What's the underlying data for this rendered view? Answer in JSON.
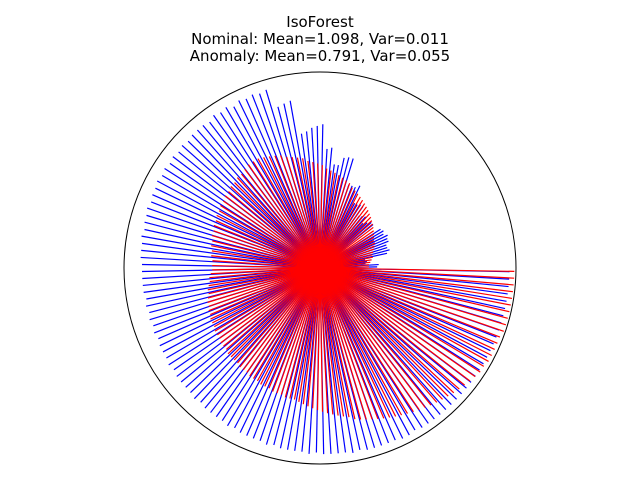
{
  "chart_data": {
    "type": "radial-bar",
    "title_lines": [
      "IsoForest",
      "Nominal: Mean=1.098, Var=0.011",
      "Anomaly: Mean=0.791, Var=0.055"
    ],
    "grid": false,
    "legend": "none",
    "r_max": 1.2,
    "circle_radius": 1.2,
    "start_angle_deg": 0,
    "direction": "counterclockwise",
    "sectors": [
      {
        "name": "Nominal",
        "color": "#0000ff",
        "angle_start_deg": 0,
        "angle_end_deg": 180,
        "count": 80,
        "values": [
          0.35,
          0.36,
          0.28,
          0.29,
          0.28,
          0.42,
          0.44,
          0.43,
          0.43,
          0.45,
          0.45,
          0.46,
          0.44,
          0.45,
          0.44,
          0.2,
          0.14,
          0.42,
          0.42,
          0.4,
          0.38,
          0.42,
          0.41,
          0.4,
          0.46,
          0.46,
          0.45,
          0.45,
          0.56,
          0.54,
          0.54,
          0.54,
          0.7,
          0.7,
          0.69,
          0.64,
          0.64,
          0.74,
          0.73,
          0.88,
          0.87,
          0.86,
          0.84,
          0.83,
          1.04,
          1.03,
          1.02,
          1.14,
          1.13,
          1.14,
          1.13,
          1.14,
          1.12,
          1.14,
          1.13,
          1.14,
          1.12,
          1.13,
          1.13,
          1.13,
          1.12,
          1.13,
          1.12,
          1.13,
          1.12,
          1.13,
          1.12,
          1.13,
          1.12,
          1.12,
          1.11,
          1.12,
          1.11,
          1.11,
          1.1,
          1.11,
          1.1,
          1.1,
          1.1,
          1.09
        ]
      },
      {
        "name": "Nominal",
        "color": "#0000ff",
        "angle_start_deg": 180,
        "angle_end_deg": 360,
        "count": 80,
        "values": [
          1.09,
          1.09,
          1.09,
          1.09,
          1.08,
          1.09,
          1.08,
          1.09,
          1.08,
          1.09,
          1.08,
          1.09,
          1.09,
          1.09,
          1.1,
          1.09,
          1.1,
          1.1,
          1.1,
          1.1,
          1.11,
          1.1,
          1.11,
          1.11,
          1.11,
          1.11,
          1.12,
          1.11,
          1.12,
          1.12,
          1.12,
          1.12,
          1.13,
          1.12,
          1.13,
          1.13,
          1.13,
          1.13,
          1.14,
          1.13,
          1.14,
          1.14,
          1.14,
          1.14,
          1.15,
          1.14,
          1.15,
          1.15,
          1.15,
          1.15,
          1.15,
          1.16,
          1.16,
          1.15,
          1.16,
          1.16,
          1.16,
          1.16,
          1.16,
          1.16,
          1.16,
          1.16,
          1.16,
          1.16,
          1.16,
          1.16,
          1.16,
          1.16,
          1.16,
          1.16,
          1.16,
          1.16,
          1.16,
          1.16,
          1.16,
          1.16,
          1.16,
          1.16,
          1.16,
          1.16
        ]
      },
      {
        "name": "Anomaly",
        "color": "#ff0000",
        "angle_start_deg": 0,
        "angle_end_deg": 180,
        "count": 70,
        "values": [
          0.3,
          0.3,
          0.31,
          0.32,
          0.33,
          0.33,
          0.34,
          0.35,
          0.36,
          0.37,
          0.37,
          0.38,
          0.39,
          0.4,
          0.41,
          0.42,
          0.43,
          0.44,
          0.45,
          0.46,
          0.47,
          0.48,
          0.49,
          0.5,
          0.51,
          0.52,
          0.53,
          0.55,
          0.56,
          0.57,
          0.58,
          0.59,
          0.6,
          0.61,
          0.63,
          0.64,
          0.65,
          0.66,
          0.68,
          0.69,
          0.7,
          0.71,
          0.73,
          0.74,
          0.75,
          0.76,
          0.77,
          0.77,
          0.77,
          0.76,
          0.75,
          0.75,
          0.74,
          0.74,
          0.73,
          0.73,
          0.72,
          0.72,
          0.71,
          0.71,
          0.7,
          0.7,
          0.69,
          0.69,
          0.68,
          0.68,
          0.67,
          0.67,
          0.66,
          0.66
        ]
      },
      {
        "name": "Anomaly",
        "color": "#ff0000",
        "angle_start_deg": 180,
        "angle_end_deg": 360,
        "count": 90,
        "values": [
          0.66,
          0.67,
          0.68,
          0.68,
          0.69,
          0.7,
          0.7,
          0.71,
          0.72,
          0.72,
          0.73,
          0.73,
          0.74,
          0.74,
          0.74,
          0.75,
          0.75,
          0.75,
          0.76,
          0.76,
          0.76,
          0.77,
          0.77,
          0.77,
          0.77,
          0.78,
          0.78,
          0.78,
          0.79,
          0.79,
          0.79,
          0.8,
          0.8,
          0.8,
          0.81,
          0.81,
          0.81,
          0.82,
          0.82,
          0.82,
          0.83,
          0.84,
          0.85,
          0.86,
          0.87,
          0.88,
          0.89,
          0.9,
          0.91,
          0.92,
          0.93,
          0.95,
          0.96,
          0.97,
          0.98,
          0.99,
          1.0,
          1.01,
          1.02,
          1.03,
          1.04,
          1.05,
          1.06,
          1.07,
          1.08,
          1.09,
          1.1,
          1.11,
          1.12,
          1.13,
          1.14,
          1.15,
          1.16,
          1.17,
          1.17,
          1.18,
          1.18,
          1.18,
          1.18,
          1.18,
          1.19,
          1.19,
          1.19,
          1.19,
          1.19,
          1.19,
          1.19,
          1.19,
          1.19,
          1.19
        ]
      }
    ]
  }
}
